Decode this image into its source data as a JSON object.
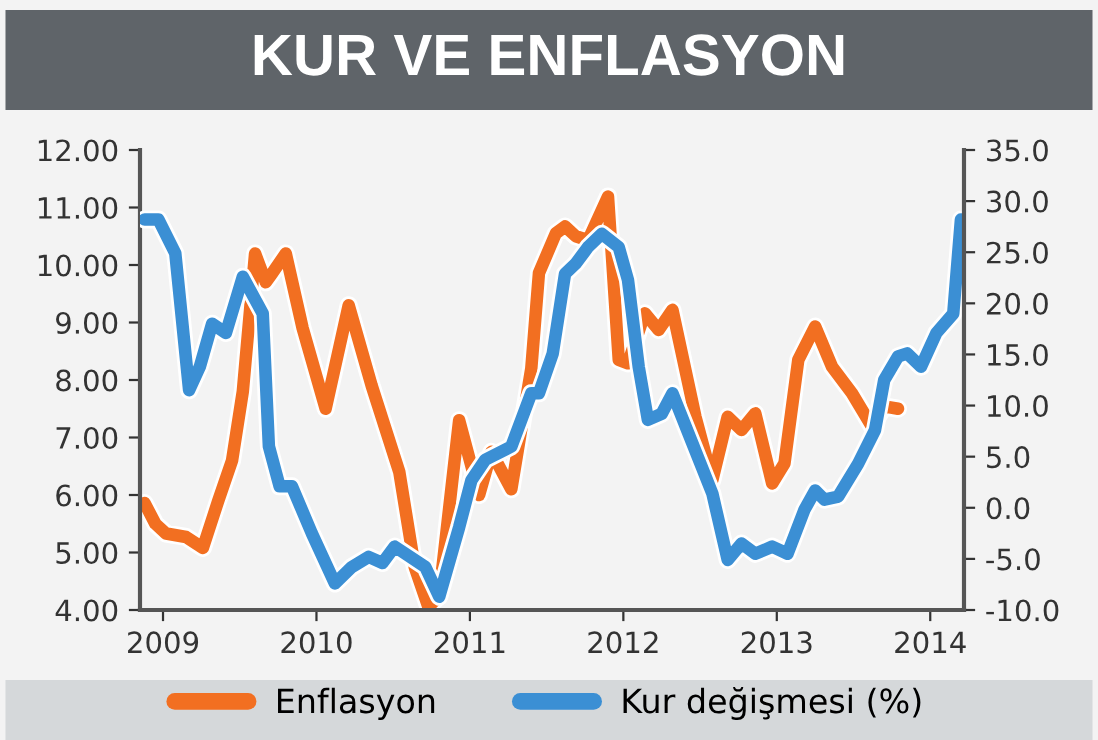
{
  "chart_data": {
    "type": "line",
    "title": "KUR VE ENFLASYON",
    "xlim": [
      2008.85,
      2014.22
    ],
    "xticks": [
      2009,
      2010,
      2011,
      2012,
      2013,
      2014
    ],
    "ylim": [
      4,
      12
    ],
    "yticks": [
      {
        "value": 4,
        "label": "4.00"
      },
      {
        "value": 5,
        "label": "5.00"
      },
      {
        "value": 6,
        "label": "6.00"
      },
      {
        "value": 7,
        "label": "7.00"
      },
      {
        "value": 8,
        "label": "8.00"
      },
      {
        "value": 9,
        "label": "9.00"
      },
      {
        "value": 10,
        "label": "10.00"
      },
      {
        "value": 11,
        "label": "11.00"
      },
      {
        "value": 12,
        "label": "12.00"
      }
    ],
    "y2lim": [
      -10,
      35
    ],
    "y2ticks": [
      {
        "value": -10,
        "label": "-10.0"
      },
      {
        "value": -5,
        "label": "-5.0"
      },
      {
        "value": 0,
        "label": "0.0"
      },
      {
        "value": 5,
        "label": "5.0"
      },
      {
        "value": 10,
        "label": "10.0"
      },
      {
        "value": 15,
        "label": "15.0"
      },
      {
        "value": 20,
        "label": "20.0"
      },
      {
        "value": 25,
        "label": "25.0"
      },
      {
        "value": 30,
        "label": "30.0"
      },
      {
        "value": 35,
        "label": "35.0"
      }
    ],
    "grid": false,
    "legend": "bottom",
    "marker": "none",
    "line_style": "solid",
    "series": [
      {
        "name": "Enflasyon",
        "color": "#f26f21",
        "x": [
          2008.88,
          2008.95,
          2009.02,
          2009.15,
          2009.26,
          2009.36,
          2009.45,
          2009.52,
          2009.6,
          2009.67,
          2009.71,
          2009.8,
          2009.91,
          2010.06,
          2010.21,
          2010.36,
          2010.54,
          2010.64,
          2010.73,
          2010.8,
          2010.93,
          2011.06,
          2011.14,
          2011.27,
          2011.4,
          2011.45,
          2011.56,
          2011.62,
          2011.69,
          2011.77,
          2011.9,
          2011.97,
          2012.03,
          2012.14,
          2012.23,
          2012.32,
          2012.47,
          2012.58,
          2012.68,
          2012.77,
          2012.86,
          2012.97,
          2013.05,
          2013.14,
          2013.25,
          2013.36,
          2013.49,
          2013.62,
          2013.7,
          2013.79
        ],
        "values": [
          5.86,
          5.5,
          5.33,
          5.27,
          5.08,
          5.9,
          6.6,
          7.8,
          10.2,
          9.7,
          9.85,
          10.2,
          8.9,
          7.5,
          9.3,
          7.9,
          6.4,
          4.75,
          4.05,
          4.25,
          7.3,
          6.0,
          6.75,
          6.1,
          8.2,
          9.86,
          10.55,
          10.67,
          10.5,
          10.43,
          11.19,
          8.35,
          8.29,
          9.16,
          8.87,
          9.22,
          7.36,
          6.26,
          7.36,
          7.13,
          7.42,
          6.2,
          6.55,
          8.35,
          8.93,
          8.23,
          7.77,
          7.19,
          7.54,
          7.5
        ]
      },
      {
        "name": "Kur değişmesi (%)",
        "color": "#3b8fd4",
        "axis": "y2",
        "x": [
          2008.88,
          2008.97,
          2009.08,
          2009.17,
          2009.24,
          2009.32,
          2009.41,
          2009.52,
          2009.65,
          2009.69,
          2009.76,
          2009.84,
          2009.97,
          2010.12,
          2010.23,
          2010.34,
          2010.43,
          2010.51,
          2010.71,
          2010.8,
          2010.93,
          2011.01,
          2011.1,
          2011.27,
          2011.4,
          2011.45,
          2011.54,
          2011.62,
          2011.69,
          2011.77,
          2011.86,
          2011.97,
          2012.03,
          2012.1,
          2012.16,
          2012.25,
          2012.32,
          2012.45,
          2012.58,
          2012.68,
          2012.77,
          2012.86,
          2012.97,
          2013.07,
          2013.18,
          2013.25,
          2013.31,
          2013.4,
          2013.53,
          2013.64,
          2013.7,
          2013.79,
          2013.85,
          2013.94,
          2014.04,
          2014.15,
          2014.2
        ],
        "values": [
          28.2,
          28.2,
          24.9,
          11.5,
          13.8,
          18.0,
          17.1,
          22.6,
          19.0,
          6.0,
          2.1,
          2.1,
          -2.5,
          -7.4,
          -5.8,
          -4.8,
          -5.4,
          -3.8,
          -5.8,
          -8.7,
          -1.9,
          2.7,
          4.7,
          6.0,
          11.2,
          11.2,
          15.1,
          22.9,
          23.9,
          25.5,
          26.8,
          25.5,
          22.3,
          13.8,
          8.6,
          9.2,
          11.2,
          6.3,
          1.4,
          -5.1,
          -3.5,
          -4.5,
          -3.8,
          -4.5,
          -0.2,
          1.7,
          0.8,
          1.1,
          4.3,
          7.6,
          12.5,
          14.8,
          15.1,
          13.8,
          17.1,
          19.0,
          28.2
        ]
      }
    ]
  }
}
